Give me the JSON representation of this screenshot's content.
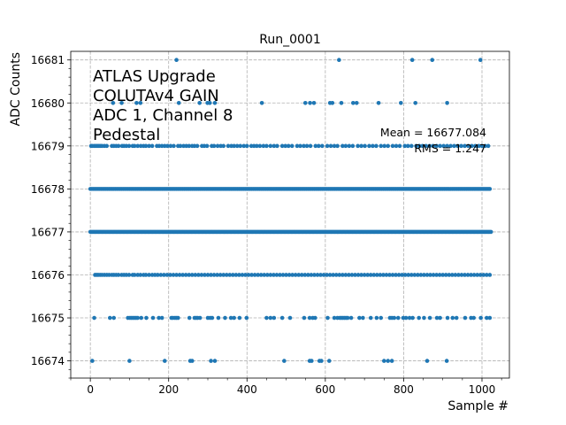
{
  "chart_data": {
    "type": "scatter",
    "title": "Run_0001",
    "xlabel": "Sample #",
    "ylabel": "ADC Counts",
    "xlim": [
      -50,
      1070
    ],
    "ylim": [
      16673.6,
      16681.2
    ],
    "xticks": [
      0,
      200,
      400,
      600,
      800,
      1000
    ],
    "yticks": [
      16674,
      16675,
      16676,
      16677,
      16678,
      16679,
      16680,
      16681
    ],
    "grid": true,
    "color": "#1f77b4",
    "annotation_lines": [
      "ATLAS Upgrade",
      "COLUTAv4 GAIN",
      "ADC 1, Channel 8",
      "Pedestal"
    ],
    "stats": {
      "mean": "Mean = 16677.084",
      "rms": "RMS = 1.247"
    },
    "n_samples": 1024,
    "x_range": [
      0,
      1023
    ],
    "series": [
      {
        "name": "ADC 1, Channel 8",
        "y": 16681,
        "x": [
          220,
          635,
          822,
          873,
          996
        ]
      },
      {
        "name": "ADC 1, Channel 8",
        "y": 16680,
        "x": [
          58,
          80,
          118,
          128,
          226,
          279,
          299,
          305,
          318,
          438,
          549,
          561,
          571,
          612,
          618,
          641,
          671,
          680,
          736,
          793,
          830,
          911
        ]
      },
      {
        "name": "ADC 1, Channel 8",
        "y": 16679,
        "x": [
          2,
          5,
          10,
          14,
          18,
          22,
          26,
          30,
          36,
          42,
          55,
          60,
          66,
          72,
          81,
          86,
          92,
          99,
          108,
          113,
          121,
          129,
          136,
          142,
          150,
          158,
          170,
          176,
          183,
          190,
          197,
          205,
          213,
          224,
          230,
          238,
          245,
          252,
          260,
          266,
          273,
          285,
          291,
          298,
          310,
          316,
          325,
          333,
          340,
          352,
          360,
          367,
          375,
          383,
          392,
          400,
          411,
          418,
          425,
          433,
          442,
          450,
          460,
          469,
          477,
          490,
          498,
          506,
          515,
          528,
          536,
          545,
          553,
          562,
          575,
          583,
          592,
          605,
          614,
          623,
          631,
          644,
          652,
          661,
          670,
          683,
          692,
          701,
          712,
          721,
          730,
          742,
          751,
          760,
          772,
          781,
          790,
          803,
          811,
          820,
          832,
          840,
          848,
          857,
          866,
          875,
          884,
          893,
          902,
          911,
          920,
          929,
          938,
          947,
          956,
          965,
          974,
          983,
          992,
          1000,
          1008,
          1016
        ]
      },
      {
        "name": "ADC 1, Channel 8",
        "y": 16678,
        "x": [
          0,
          4,
          8,
          12,
          16,
          20,
          24,
          28,
          32,
          36,
          40,
          44,
          48,
          52,
          56,
          60,
          64,
          68,
          72,
          76,
          80,
          84,
          88,
          92,
          96,
          100,
          104,
          108,
          112,
          116,
          120,
          124,
          128,
          132,
          136,
          140,
          144,
          148,
          152,
          156,
          160,
          164,
          168,
          172,
          176,
          180,
          184,
          188,
          192,
          196,
          200,
          204,
          208,
          212,
          216,
          220,
          224,
          228,
          232,
          236,
          240,
          244,
          248,
          252,
          256,
          260,
          264,
          268,
          272,
          276,
          280,
          284,
          288,
          292,
          296,
          300,
          304,
          308,
          312,
          316,
          320,
          324,
          328,
          332,
          336,
          340,
          344,
          348,
          352,
          356,
          360,
          364,
          368,
          372,
          376,
          380,
          384,
          388,
          392,
          396,
          400,
          404,
          408,
          412,
          416,
          420,
          424,
          428,
          432,
          436,
          440,
          444,
          448,
          452,
          456,
          460,
          464,
          468,
          472,
          476,
          480,
          484,
          488,
          492,
          496,
          500,
          504,
          508,
          512,
          516,
          520,
          524,
          528,
          532,
          536,
          540,
          544,
          548,
          552,
          556,
          560,
          564,
          568,
          572,
          576,
          580,
          584,
          588,
          592,
          596,
          600,
          604,
          608,
          612,
          616,
          620,
          624,
          628,
          632,
          636,
          640,
          644,
          648,
          652,
          656,
          660,
          664,
          668,
          672,
          676,
          680,
          684,
          688,
          692,
          696,
          700,
          704,
          708,
          712,
          716,
          720,
          724,
          728,
          732,
          736,
          740,
          744,
          748,
          752,
          756,
          760,
          764,
          768,
          772,
          776,
          780,
          784,
          788,
          792,
          796,
          800,
          804,
          808,
          812,
          816,
          820,
          824,
          828,
          832,
          836,
          840,
          844,
          848,
          852,
          856,
          860,
          864,
          868,
          872,
          876,
          880,
          884,
          888,
          892,
          896,
          900,
          904,
          908,
          912,
          916,
          920,
          924,
          928,
          932,
          936,
          940,
          944,
          948,
          952,
          956,
          960,
          964,
          968,
          972,
          976,
          980,
          984,
          988,
          992,
          996,
          1000,
          1004,
          1008,
          1012,
          1016,
          1020
        ]
      },
      {
        "name": "ADC 1, Channel 8",
        "y": 16677,
        "x": [
          0,
          3,
          6,
          9,
          12,
          15,
          18,
          21,
          24,
          27,
          30,
          33,
          36,
          39,
          42,
          45,
          48,
          51,
          54,
          57,
          60,
          63,
          66,
          69,
          72,
          75,
          78,
          81,
          84,
          87,
          90,
          93,
          96,
          99,
          102,
          105,
          108,
          111,
          114,
          117,
          120,
          123,
          126,
          129,
          132,
          135,
          138,
          141,
          144,
          147,
          150,
          153,
          156,
          159,
          162,
          165,
          168,
          171,
          174,
          177,
          180,
          183,
          186,
          189,
          192,
          195,
          198,
          201,
          204,
          207,
          210,
          213,
          216,
          219,
          222,
          225,
          228,
          231,
          234,
          237,
          240,
          243,
          246,
          249,
          252,
          255,
          258,
          261,
          264,
          267,
          270,
          273,
          276,
          279,
          282,
          285,
          288,
          291,
          294,
          297,
          300,
          303,
          306,
          309,
          312,
          315,
          318,
          321,
          324,
          327,
          330,
          333,
          336,
          339,
          342,
          345,
          348,
          351,
          354,
          357,
          360,
          363,
          366,
          369,
          372,
          375,
          378,
          381,
          384,
          387,
          390,
          393,
          396,
          399,
          402,
          405,
          408,
          411,
          414,
          417,
          420,
          423,
          426,
          429,
          432,
          435,
          438,
          441,
          444,
          447,
          450,
          453,
          456,
          459,
          462,
          465,
          468,
          471,
          474,
          477,
          480,
          483,
          486,
          489,
          492,
          495,
          498,
          501,
          504,
          507,
          510,
          513,
          516,
          519,
          522,
          525,
          528,
          531,
          534,
          537,
          540,
          543,
          546,
          549,
          552,
          555,
          558,
          561,
          564,
          567,
          570,
          573,
          576,
          579,
          582,
          585,
          588,
          591,
          594,
          597,
          600,
          603,
          606,
          609,
          612,
          615,
          618,
          621,
          624,
          627,
          630,
          633,
          636,
          639,
          642,
          645,
          648,
          651,
          654,
          657,
          660,
          663,
          666,
          669,
          672,
          675,
          678,
          681,
          684,
          687,
          690,
          693,
          696,
          699,
          702,
          705,
          708,
          711,
          714,
          717,
          720,
          723,
          726,
          729,
          732,
          735,
          738,
          741,
          744,
          747,
          750,
          753,
          756,
          759,
          762,
          765,
          768,
          771,
          774,
          777,
          780,
          783,
          786,
          789,
          792,
          795,
          798,
          801,
          804,
          807,
          810,
          813,
          816,
          819,
          822,
          825,
          828,
          831,
          834,
          837,
          840,
          843,
          846,
          849,
          852,
          855,
          858,
          861,
          864,
          867,
          870,
          873,
          876,
          879,
          882,
          885,
          888,
          891,
          894,
          897,
          900,
          903,
          906,
          909,
          912,
          915,
          918,
          921,
          924,
          927,
          930,
          933,
          936,
          939,
          942,
          945,
          948,
          951,
          954,
          957,
          960,
          963,
          966,
          969,
          972,
          975,
          978,
          981,
          984,
          987,
          990,
          993,
          996,
          999,
          1002,
          1005,
          1008,
          1011,
          1014,
          1017,
          1020,
          1023
        ]
      },
      {
        "name": "ADC 1, Channel 8",
        "y": 16676,
        "x": [
          12,
          16,
          20,
          25,
          30,
          36,
          42,
          48,
          55,
          60,
          66,
          72,
          80,
          86,
          92,
          99,
          108,
          113,
          121,
          128,
          136,
          142,
          150,
          158,
          165,
          172,
          180,
          188,
          196,
          204,
          212,
          220,
          228,
          236,
          244,
          252,
          260,
          268,
          276,
          284,
          292,
          300,
          308,
          316,
          324,
          332,
          340,
          348,
          356,
          364,
          372,
          380,
          388,
          396,
          404,
          412,
          420,
          428,
          436,
          444,
          452,
          460,
          468,
          476,
          484,
          492,
          500,
          508,
          516,
          524,
          532,
          540,
          548,
          556,
          564,
          572,
          580,
          588,
          596,
          604,
          612,
          620,
          628,
          636,
          644,
          652,
          660,
          668,
          676,
          684,
          692,
          700,
          708,
          716,
          724,
          732,
          740,
          748,
          756,
          764,
          772,
          780,
          788,
          796,
          804,
          812,
          820,
          828,
          836,
          844,
          852,
          860,
          868,
          876,
          884,
          892,
          900,
          908,
          916,
          924,
          932,
          940,
          948,
          956,
          964,
          972,
          980,
          988,
          996,
          1004,
          1012,
          1020
        ]
      },
      {
        "name": "ADC 1, Channel 8",
        "y": 16675,
        "x": [
          10,
          50,
          60,
          96,
          101,
          105,
          109,
          113,
          117,
          121,
          130,
          143,
          160,
          175,
          183,
          207,
          211,
          216,
          220,
          224,
          253,
          266,
          270,
          274,
          280,
          300,
          306,
          311,
          327,
          344,
          359,
          367,
          381,
          399,
          450,
          460,
          469,
          490,
          510,
          546,
          560,
          568,
          574,
          606,
          623,
          631,
          637,
          641,
          645,
          649,
          653,
          657,
          666,
          687,
          696,
          716,
          731,
          742,
          765,
          770,
          776,
          786,
          799,
          806,
          815,
          823,
          839,
          852,
          867,
          885,
          893,
          912,
          925,
          935,
          957,
          972,
          979,
          997,
          1012,
          1020
        ]
      },
      {
        "name": "ADC 1, Channel 8",
        "y": 16674,
        "x": [
          5,
          100,
          190,
          255,
          260,
          308,
          318,
          495,
          560,
          565,
          585,
          590,
          610,
          750,
          760,
          770,
          860,
          910
        ]
      }
    ]
  }
}
